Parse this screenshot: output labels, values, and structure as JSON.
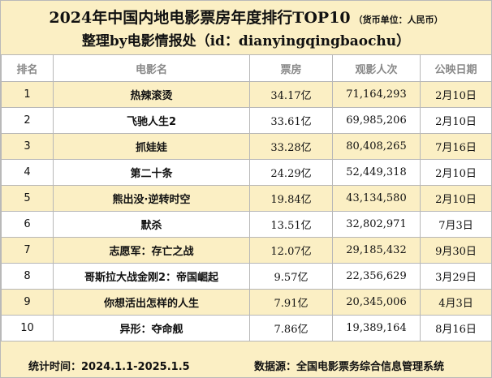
{
  "header": {
    "title": "2024年中国内地电影票房年度排行TOP10",
    "unit": "（货币单位：人民币）",
    "subtitle": "整理by电影情报处（id：dianyingqingbaochu）"
  },
  "table": {
    "columns": [
      "排名",
      "电影名",
      "票房",
      "观影人次",
      "公映日期"
    ],
    "rows": [
      {
        "rank": "1",
        "title": "热辣滚烫",
        "box_office": "34.17亿",
        "admissions": "71,164,293",
        "release_date": "2月10日"
      },
      {
        "rank": "2",
        "title": "飞驰人生2",
        "box_office": "33.61亿",
        "admissions": "69,985,206",
        "release_date": "2月10日"
      },
      {
        "rank": "3",
        "title": "抓娃娃",
        "box_office": "33.28亿",
        "admissions": "80,408,265",
        "release_date": "7月16日"
      },
      {
        "rank": "4",
        "title": "第二十条",
        "box_office": "24.29亿",
        "admissions": "52,449,318",
        "release_date": "2月10日"
      },
      {
        "rank": "5",
        "title": "熊出没·逆转时空",
        "box_office": "19.84亿",
        "admissions": "43,134,580",
        "release_date": "2月10日"
      },
      {
        "rank": "6",
        "title": "默杀",
        "box_office": "13.51亿",
        "admissions": "32,802,971",
        "release_date": "7月3日"
      },
      {
        "rank": "7",
        "title": "志愿军：存亡之战",
        "box_office": "12.07亿",
        "admissions": "29,185,432",
        "release_date": "9月30日"
      },
      {
        "rank": "8",
        "title": "哥斯拉大战金刚2：帝国崛起",
        "box_office": "9.57亿",
        "admissions": "22,356,629",
        "release_date": "3月29日"
      },
      {
        "rank": "9",
        "title": "你想活出怎样的人生",
        "box_office": "7.91亿",
        "admissions": "20,345,006",
        "release_date": "4月3日"
      },
      {
        "rank": "10",
        "title": "异形：夺命舰",
        "box_office": "7.86亿",
        "admissions": "19,389,164",
        "release_date": "8月16日"
      }
    ]
  },
  "footer": {
    "period": "统计时间：2024.1.1-2025.1.5",
    "source": "数据源：全国电影票务综合信息管理系统"
  },
  "colors": {
    "cream": "#fbefc4",
    "white": "#ffffff",
    "header_text": "#888888",
    "border": "#b7b7b7"
  }
}
